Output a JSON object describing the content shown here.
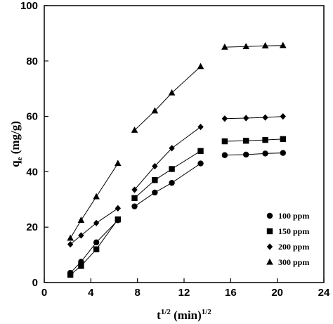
{
  "chart_data": {
    "type": "scatter",
    "title": "",
    "xlabel": {
      "base": "t",
      "base_sup": "1/2",
      "rest": " (min)",
      "rest_sup": "1/2"
    },
    "ylabel": {
      "base": "q",
      "base_sub": "e",
      "rest": " (mg/g)"
    },
    "xlim": [
      0,
      24
    ],
    "ylim": [
      0,
      100
    ],
    "xticks": [
      "0",
      "4",
      "8",
      "12",
      "16",
      "20",
      "24"
    ],
    "yticks": [
      "0",
      "20",
      "40",
      "60",
      "80",
      "100"
    ],
    "grid": false,
    "legend_position": "bottom-right",
    "series": [
      {
        "name": "100 ppm",
        "marker": "circle",
        "points": [
          [
            2.24,
            3.5
          ],
          [
            3.16,
            7.5
          ],
          [
            4.47,
            14.5
          ],
          [
            6.32,
            22.5
          ],
          [
            7.75,
            27.5
          ],
          [
            9.49,
            32.5
          ],
          [
            10.95,
            36.0
          ],
          [
            13.42,
            43.0
          ],
          [
            15.49,
            46.0
          ],
          [
            17.32,
            46.2
          ],
          [
            18.97,
            46.6
          ],
          [
            20.49,
            46.8
          ]
        ],
        "segments": [
          [
            0,
            3
          ],
          [
            4,
            7
          ],
          [
            8,
            11
          ]
        ]
      },
      {
        "name": "150 ppm",
        "marker": "square",
        "points": [
          [
            2.24,
            2.8
          ],
          [
            3.16,
            6.0
          ],
          [
            4.47,
            12.0
          ],
          [
            6.32,
            22.8
          ],
          [
            7.75,
            30.5
          ],
          [
            9.49,
            37.0
          ],
          [
            10.95,
            41.0
          ],
          [
            13.42,
            47.5
          ],
          [
            15.49,
            51.0
          ],
          [
            17.32,
            51.2
          ],
          [
            18.97,
            51.5
          ],
          [
            20.49,
            51.8
          ]
        ],
        "segments": [
          [
            0,
            3
          ],
          [
            4,
            7
          ],
          [
            8,
            11
          ]
        ]
      },
      {
        "name": "200 ppm",
        "marker": "diamond",
        "points": [
          [
            2.24,
            13.8
          ],
          [
            3.16,
            17.0
          ],
          [
            4.47,
            21.5
          ],
          [
            6.32,
            26.8
          ],
          [
            7.75,
            33.5
          ],
          [
            9.49,
            42.0
          ],
          [
            10.95,
            48.5
          ],
          [
            13.42,
            56.2
          ],
          [
            15.49,
            59.2
          ],
          [
            17.32,
            59.4
          ],
          [
            18.97,
            59.6
          ],
          [
            20.49,
            60.0
          ]
        ],
        "segments": [
          [
            0,
            3
          ],
          [
            4,
            7
          ],
          [
            8,
            11
          ]
        ]
      },
      {
        "name": "300 ppm",
        "marker": "triangle",
        "points": [
          [
            2.24,
            16.0
          ],
          [
            3.16,
            22.5
          ],
          [
            4.47,
            31.0
          ],
          [
            6.32,
            43.0
          ],
          [
            7.75,
            55.0
          ],
          [
            9.49,
            62.0
          ],
          [
            10.95,
            68.5
          ],
          [
            13.42,
            78.0
          ],
          [
            15.49,
            85.0
          ],
          [
            17.32,
            85.2
          ],
          [
            18.97,
            85.5
          ],
          [
            20.49,
            85.6
          ]
        ],
        "segments": [
          [
            0,
            3
          ],
          [
            4,
            7
          ],
          [
            8,
            11
          ]
        ]
      }
    ]
  }
}
